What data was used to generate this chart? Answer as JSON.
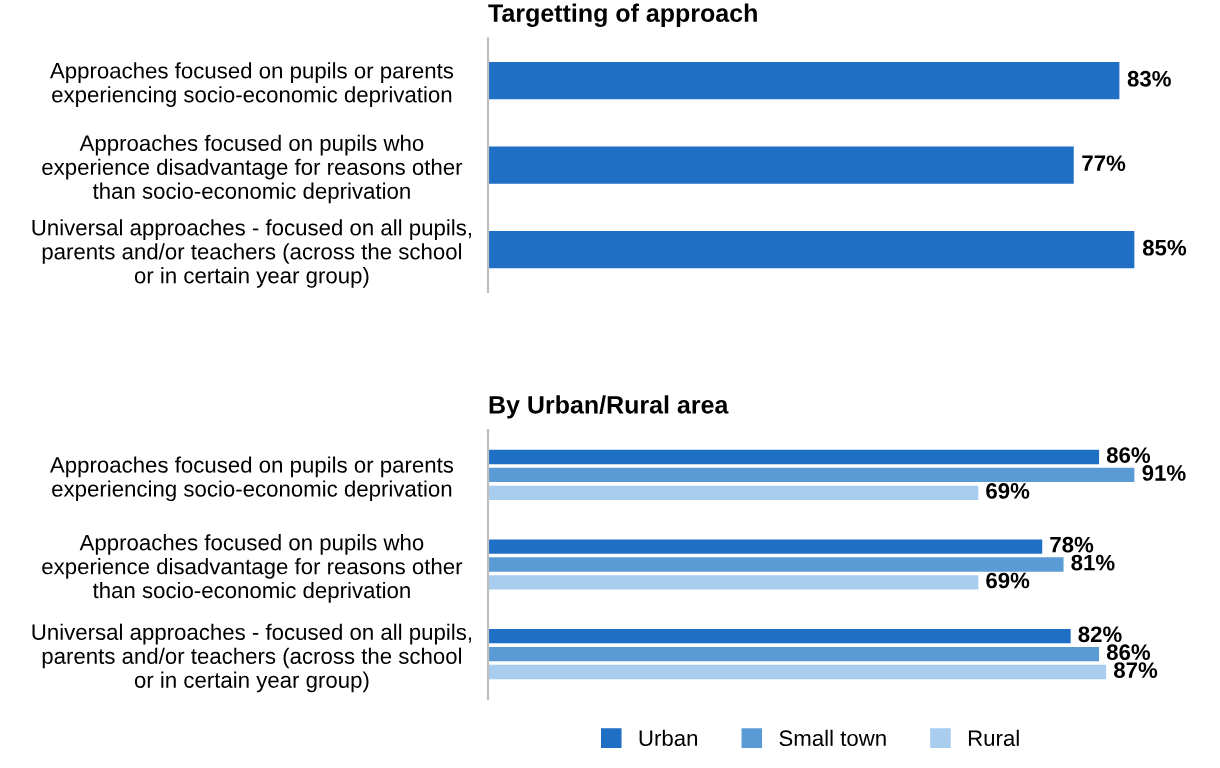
{
  "chart_data": [
    {
      "type": "bar",
      "orientation": "horizontal",
      "title": "Targetting of approach",
      "tick_labels": "y",
      "grid": false,
      "legend": false,
      "categories": [
        "Approaches focused on pupils or parents\nexperiencing socio-economic deprivation",
        "Approaches focused on pupils who\nexperience disadvantage for reasons other\nthan socio-economic deprivation",
        "Universal approaches - focused on all pupils,\nparents and/or teachers (across the school\nor in certain year group)"
      ],
      "series": [
        {
          "color": "#1f6fc5",
          "values": [
            83,
            77,
            85
          ],
          "value_labels": [
            "83%",
            "77%",
            "85%"
          ]
        }
      ]
    },
    {
      "type": "bar",
      "orientation": "horizontal",
      "title": "By Urban/Rural area",
      "tick_labels": "y",
      "grid": false,
      "legend": "bottom",
      "categories": [
        "Approaches focused on pupils or parents\nexperiencing socio-economic deprivation",
        "Approaches focused on pupils who\nexperience disadvantage for reasons other\nthan socio-economic deprivation",
        "Universal approaches - focused on all pupils,\nparents and/or teachers (across the school\nor in certain year group)"
      ],
      "series": [
        {
          "name": "Urban",
          "color": "#1f6fc5",
          "values": [
            86,
            78,
            82
          ],
          "value_labels": [
            "86%",
            "78%",
            "82%"
          ]
        },
        {
          "name": "Small town",
          "color": "#5b9bd5",
          "values": [
            91,
            81,
            86
          ],
          "value_labels": [
            "91%",
            "81%",
            "86%"
          ]
        },
        {
          "name": "Rural",
          "color": "#a9cdef",
          "values": [
            69,
            69,
            87
          ],
          "value_labels": [
            "69%",
            "69%",
            "87%"
          ]
        }
      ]
    }
  ]
}
